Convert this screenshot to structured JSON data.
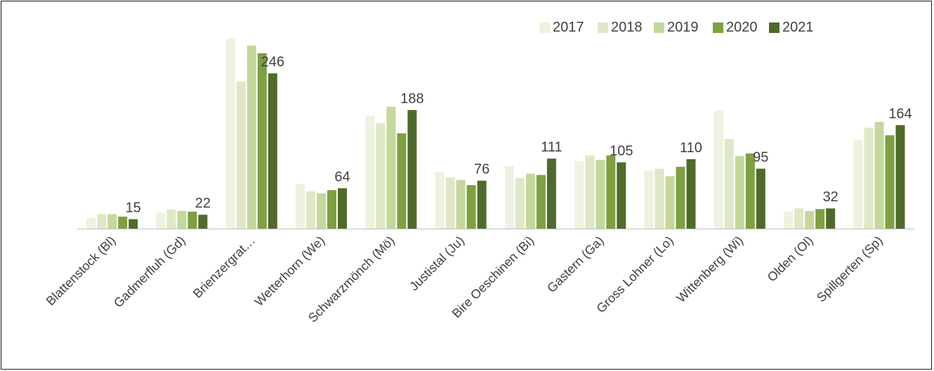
{
  "chart_data": {
    "type": "bar",
    "categories": [
      "Blattenstock (Bl)",
      "Gadmerfluh (Gd)",
      "Brienzergrat…",
      "Wetterhorn (We)",
      "Schwarzmönch (Mö)",
      "Justistal (Ju)",
      "Bire Oeschinen (Bi)",
      "Gastern (Ga)",
      "Gross Lohner (Lo)",
      "Wittenberg (Wi)",
      "Olden (Ol)",
      "Spillgerten (Sp)"
    ],
    "series": [
      {
        "name": "2017",
        "color": "#eef2e0",
        "values": [
          17,
          25,
          301,
          71,
          179,
          90,
          99,
          107,
          92,
          187,
          27,
          141
        ]
      },
      {
        "name": "2018",
        "color": "#dfe8c6",
        "values": [
          23,
          30,
          233,
          59,
          167,
          81,
          80,
          116,
          95,
          142,
          32,
          160
        ]
      },
      {
        "name": "2019",
        "color": "#c4d89c",
        "values": [
          23,
          28,
          290,
          56,
          193,
          77,
          87,
          109,
          83,
          115,
          28,
          169
        ]
      },
      {
        "name": "2020",
        "color": "#7ea040",
        "values": [
          19,
          27,
          278,
          61,
          151,
          69,
          85,
          116,
          98,
          119,
          31,
          148
        ]
      },
      {
        "name": "2021",
        "color": "#4f6b2b",
        "values": [
          15,
          22,
          246,
          64,
          188,
          76,
          111,
          105,
          110,
          95,
          32,
          164
        ]
      }
    ],
    "data_labels": [
      "15",
      "22",
      "246",
      "64",
      "188",
      "76",
      "111",
      "105",
      "110",
      "95",
      "32",
      "164"
    ],
    "title": "",
    "xlabel": "",
    "ylabel": "",
    "ylim": [
      0,
      310
    ],
    "grid": false,
    "legend_position": "top-right"
  }
}
